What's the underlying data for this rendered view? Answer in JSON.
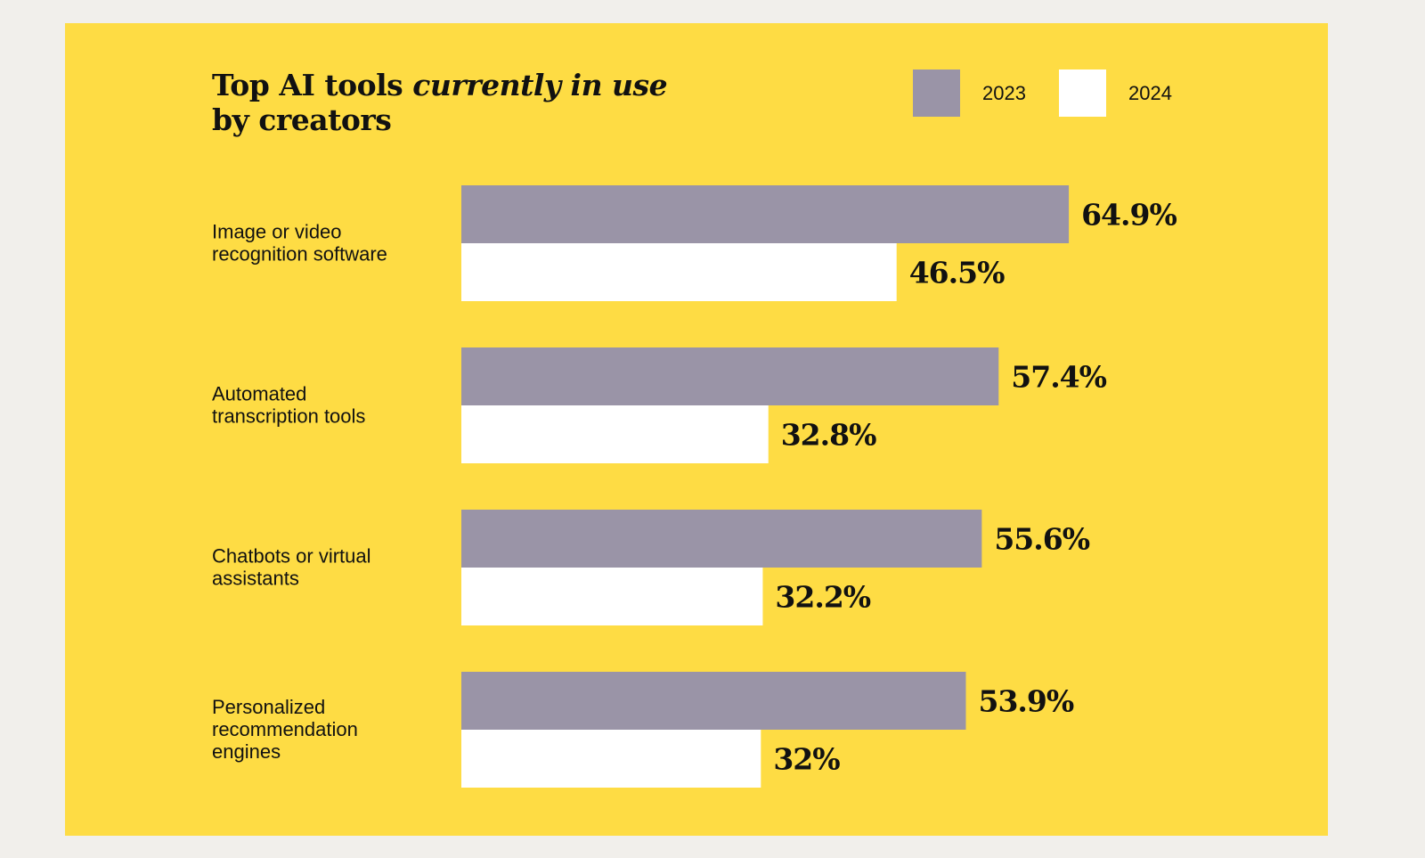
{
  "chart_data": {
    "type": "bar",
    "orientation": "horizontal",
    "title_parts": {
      "prefix": "Top AI tools ",
      "emphasis": "currently in use",
      "suffix": "by creators"
    },
    "categories": [
      [
        "Image or video",
        "recognition software"
      ],
      [
        "Automated",
        "transcription tools"
      ],
      [
        "Chatbots or virtual",
        "assistants"
      ],
      [
        "Personalized",
        "recommendation",
        "engines"
      ]
    ],
    "series": [
      {
        "name": "2023",
        "color": "#9a94a7",
        "values": [
          64.9,
          57.4,
          55.6,
          53.9
        ],
        "labels": [
          "64.9%",
          "57.4%",
          "55.6%",
          "53.9%"
        ]
      },
      {
        "name": "2024",
        "color": "#ffffff",
        "values": [
          46.5,
          32.8,
          32.2,
          32
        ],
        "labels": [
          "46.5%",
          "32.8%",
          "32.2%",
          "32%"
        ]
      }
    ],
    "value_unit": "%",
    "legend_position": "top-right",
    "grid": false,
    "background": "#fedc44"
  }
}
